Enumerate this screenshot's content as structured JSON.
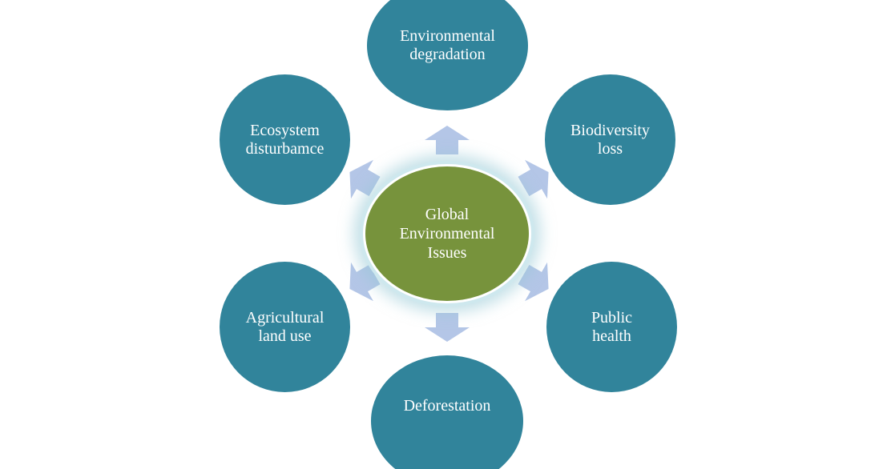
{
  "diagram": {
    "center": {
      "label": "Global\nEnvironmental\nIssues",
      "color": "#77933c"
    },
    "node_color": "#31849b",
    "arrow_color": "#b4c6e7",
    "nodes": [
      {
        "label": "Environmental\ndegradation"
      },
      {
        "label": "Biodiversity\nloss"
      },
      {
        "label": "Public\nhealth"
      },
      {
        "label": "Deforestation"
      },
      {
        "label": "Agricultural\nland use"
      },
      {
        "label": "Ecosystem\ndisturbamce"
      }
    ]
  }
}
